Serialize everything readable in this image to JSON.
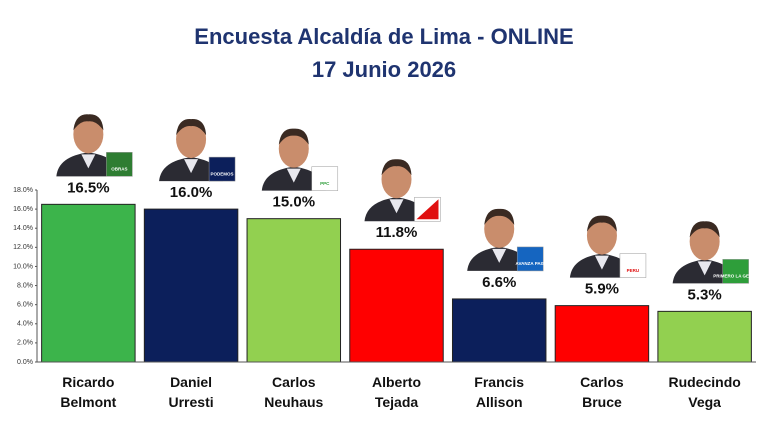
{
  "chart_data": {
    "type": "bar",
    "title": "Encuesta Alcaldía de Lima - ONLINE",
    "subtitle": "17 Junio 2026",
    "categories": [
      "Ricardo Belmont",
      "Daniel Urresti",
      "Carlos Neuhaus",
      "Alberto Tejada",
      "Francis Allison",
      "Carlos Bruce",
      "Rudecindo Vega"
    ],
    "values": [
      16.5,
      16.0,
      15.0,
      11.8,
      6.6,
      5.9,
      5.3
    ],
    "value_labels": [
      "16.5%",
      "16.0%",
      "15.0%",
      "11.8%",
      "6.6%",
      "5.9%",
      "5.3%"
    ],
    "colors": [
      "#3cb44b",
      "#0c1f5b",
      "#92d050",
      "#ff0000",
      "#0c1f5b",
      "#ff0000",
      "#92d050"
    ],
    "party_logos": [
      "OBRAS",
      "PODEMOS",
      "PPC",
      null,
      "AVANZA PAIS",
      "PERU",
      "PRIMERO LA GENTE"
    ],
    "ylim": [
      0,
      18
    ],
    "yticks": [
      {
        "value": 0,
        "label": "0.0%"
      },
      {
        "value": 2,
        "label": "2.0%"
      },
      {
        "value": 4,
        "label": "4.0%"
      },
      {
        "value": 6,
        "label": "6.0%"
      },
      {
        "value": 8,
        "label": "8.0%"
      },
      {
        "value": 10,
        "label": "10.0%"
      },
      {
        "value": 12,
        "label": "12.0%"
      },
      {
        "value": 14,
        "label": "14.0%"
      },
      {
        "value": 16,
        "label": "16.0%"
      },
      {
        "value": 18,
        "label": "18.0%"
      }
    ],
    "grid": false
  }
}
